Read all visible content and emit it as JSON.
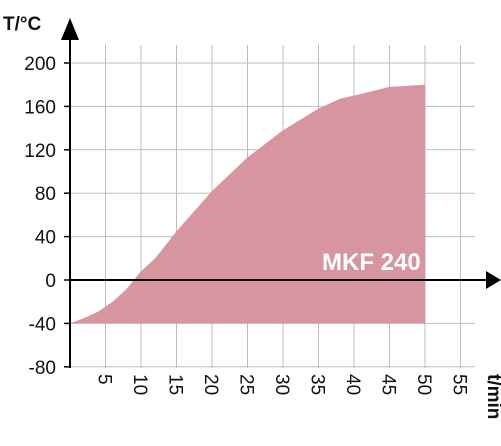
{
  "chart_data": {
    "type": "area",
    "title": "",
    "ylabel": "T/°C",
    "xlabel": "t/min",
    "x": [
      0,
      2,
      4,
      6,
      8,
      10,
      12,
      15,
      20,
      25,
      30,
      35,
      38,
      40,
      45,
      50
    ],
    "series": [
      {
        "name": "MKF 240",
        "upper": [
          -40,
          -35,
          -29,
          -20,
          -8,
          8,
          20,
          45,
          82,
          113,
          138,
          158,
          167,
          170,
          178,
          180
        ],
        "lower": [
          -40,
          -40,
          -40,
          -40,
          -40,
          -40,
          -40,
          -40,
          -40,
          -40,
          -40,
          -40,
          -40,
          -40,
          -40,
          -40
        ],
        "color": "#d7959f"
      }
    ],
    "xticks": [
      "5",
      "10",
      "15",
      "20",
      "25",
      "30",
      "35",
      "40",
      "45",
      "50",
      "55"
    ],
    "yticks": [
      "200",
      "160",
      "120",
      "80",
      "40",
      "0",
      "-40",
      "-80"
    ],
    "xlim": [
      0,
      57
    ],
    "ylim": [
      -80,
      200
    ],
    "grid": true,
    "series_label": "MKF 240"
  }
}
